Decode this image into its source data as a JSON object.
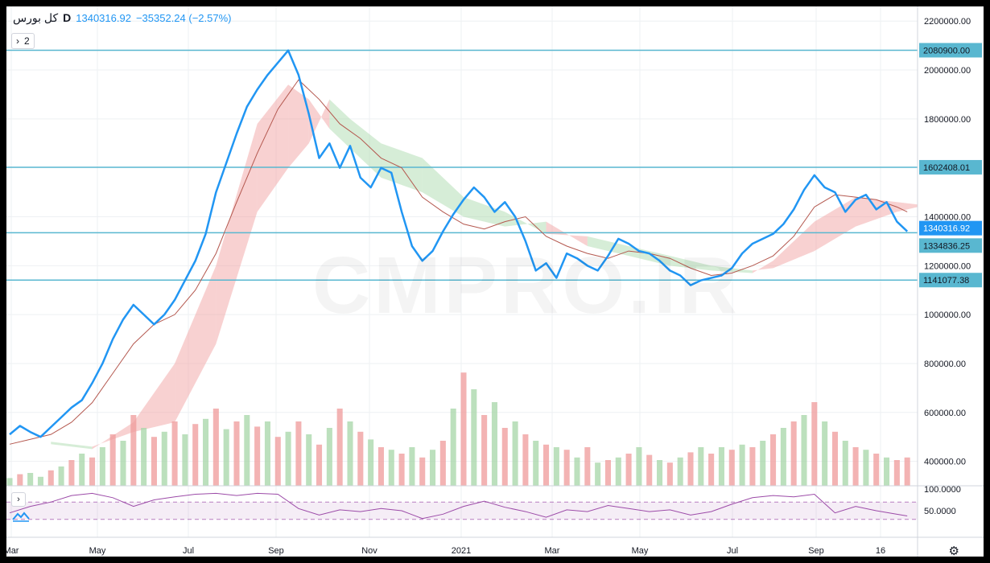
{
  "legend": {
    "symbol": "کل بورس",
    "interval": "D",
    "price": "1340316.92",
    "change": "−35352.24 (−2.57%)"
  },
  "toolbar": {
    "indicators_count": "2"
  },
  "watermark": "CMPRO.IR",
  "price_axis": {
    "ticks": [
      "2200000.00",
      "2000000.00",
      "1800000.00",
      "1400000.00",
      "1200000.00",
      "1000000.00",
      "800000.00",
      "600000.00",
      "400000.00"
    ],
    "labels": [
      {
        "text": "2080900.00",
        "style": "line"
      },
      {
        "text": "1602408.01",
        "style": "line"
      },
      {
        "text": "1340316.92",
        "style": "current"
      },
      {
        "text": "1334836.25",
        "style": "line"
      },
      {
        "text": "1141077.38",
        "style": "line"
      }
    ]
  },
  "rsi_axis": {
    "ticks": [
      "100.0000",
      "50.0000"
    ]
  },
  "time_axis": {
    "ticks": [
      "Mar",
      "May",
      "Jul",
      "Sep",
      "Nov",
      "2021",
      "Mar",
      "May",
      "Jul",
      "Sep",
      "16"
    ]
  },
  "chart_data": {
    "type": "line",
    "x_range": [
      "2020-03",
      "2021-10"
    ],
    "ylim": [
      300000,
      2260000
    ],
    "horizontal_lines": [
      2080900.0,
      1602408.01,
      1334836.25,
      1141077.38
    ],
    "current_price": 1340316.92,
    "colors": {
      "price": "#2196f3",
      "ma": "#b4584f",
      "cloud_up": "#a5d6a7",
      "cloud_down": "#ef9a9a",
      "level_line": "#59b7d0",
      "volume_up": "#a5d6a7",
      "volume_down": "#ef9a9a",
      "rsi": "#9c4ba8"
    },
    "series": [
      {
        "role": "price",
        "points": [
          [
            0,
            510000
          ],
          [
            1,
            545000
          ],
          [
            2,
            520000
          ],
          [
            3,
            500000
          ],
          [
            4,
            540000
          ],
          [
            5,
            580000
          ],
          [
            6,
            620000
          ],
          [
            7,
            650000
          ],
          [
            8,
            720000
          ],
          [
            9,
            800000
          ],
          [
            10,
            900000
          ],
          [
            11,
            980000
          ],
          [
            12,
            1040000
          ],
          [
            13,
            1000000
          ],
          [
            14,
            960000
          ],
          [
            15,
            1000000
          ],
          [
            16,
            1060000
          ],
          [
            17,
            1140000
          ],
          [
            18,
            1220000
          ],
          [
            19,
            1330000
          ],
          [
            20,
            1500000
          ],
          [
            21,
            1620000
          ],
          [
            22,
            1740000
          ],
          [
            23,
            1850000
          ],
          [
            24,
            1920000
          ],
          [
            25,
            1980000
          ],
          [
            26,
            2030000
          ],
          [
            27,
            2080000
          ],
          [
            28,
            1980000
          ],
          [
            29,
            1820000
          ],
          [
            30,
            1640000
          ],
          [
            31,
            1700000
          ],
          [
            32,
            1600000
          ],
          [
            33,
            1690000
          ],
          [
            34,
            1560000
          ],
          [
            35,
            1520000
          ],
          [
            36,
            1600000
          ],
          [
            37,
            1580000
          ],
          [
            38,
            1420000
          ],
          [
            39,
            1280000
          ],
          [
            40,
            1220000
          ],
          [
            41,
            1260000
          ],
          [
            42,
            1340000
          ],
          [
            43,
            1410000
          ],
          [
            44,
            1470000
          ],
          [
            45,
            1520000
          ],
          [
            46,
            1480000
          ],
          [
            47,
            1420000
          ],
          [
            48,
            1460000
          ],
          [
            49,
            1400000
          ],
          [
            50,
            1300000
          ],
          [
            51,
            1180000
          ],
          [
            52,
            1210000
          ],
          [
            53,
            1150000
          ],
          [
            54,
            1250000
          ],
          [
            55,
            1230000
          ],
          [
            56,
            1200000
          ],
          [
            57,
            1180000
          ],
          [
            58,
            1240000
          ],
          [
            59,
            1310000
          ],
          [
            60,
            1290000
          ],
          [
            61,
            1260000
          ],
          [
            62,
            1250000
          ],
          [
            63,
            1220000
          ],
          [
            64,
            1180000
          ],
          [
            65,
            1160000
          ],
          [
            66,
            1120000
          ],
          [
            67,
            1140000
          ],
          [
            68,
            1150000
          ],
          [
            69,
            1160000
          ],
          [
            70,
            1190000
          ],
          [
            71,
            1250000
          ],
          [
            72,
            1290000
          ],
          [
            73,
            1310000
          ],
          [
            74,
            1330000
          ],
          [
            75,
            1370000
          ],
          [
            76,
            1430000
          ],
          [
            77,
            1510000
          ],
          [
            78,
            1570000
          ],
          [
            79,
            1520000
          ],
          [
            80,
            1500000
          ],
          [
            81,
            1420000
          ],
          [
            82,
            1470000
          ],
          [
            83,
            1490000
          ],
          [
            84,
            1430000
          ],
          [
            85,
            1460000
          ],
          [
            86,
            1380000
          ],
          [
            87,
            1340316.92
          ]
        ]
      },
      {
        "role": "ma",
        "points": [
          [
            0,
            470000
          ],
          [
            2,
            490000
          ],
          [
            4,
            510000
          ],
          [
            6,
            560000
          ],
          [
            8,
            640000
          ],
          [
            10,
            760000
          ],
          [
            12,
            880000
          ],
          [
            14,
            960000
          ],
          [
            16,
            1000000
          ],
          [
            18,
            1100000
          ],
          [
            20,
            1250000
          ],
          [
            22,
            1460000
          ],
          [
            24,
            1660000
          ],
          [
            26,
            1840000
          ],
          [
            28,
            1960000
          ],
          [
            30,
            1880000
          ],
          [
            32,
            1780000
          ],
          [
            34,
            1720000
          ],
          [
            36,
            1640000
          ],
          [
            38,
            1600000
          ],
          [
            40,
            1480000
          ],
          [
            42,
            1420000
          ],
          [
            44,
            1370000
          ],
          [
            46,
            1350000
          ],
          [
            48,
            1380000
          ],
          [
            50,
            1400000
          ],
          [
            52,
            1320000
          ],
          [
            54,
            1280000
          ],
          [
            56,
            1250000
          ],
          [
            58,
            1230000
          ],
          [
            60,
            1260000
          ],
          [
            62,
            1250000
          ],
          [
            64,
            1230000
          ],
          [
            66,
            1190000
          ],
          [
            68,
            1160000
          ],
          [
            70,
            1170000
          ],
          [
            72,
            1200000
          ],
          [
            74,
            1240000
          ],
          [
            76,
            1320000
          ],
          [
            78,
            1440000
          ],
          [
            80,
            1490000
          ],
          [
            82,
            1480000
          ],
          [
            84,
            1470000
          ],
          [
            86,
            1440000
          ],
          [
            87,
            1420000
          ]
        ]
      }
    ],
    "cloud": [
      [
        4,
        480000,
        470000
      ],
      [
        8,
        460000,
        450000
      ],
      [
        12,
        520000,
        560000
      ],
      [
        16,
        560000,
        800000
      ],
      [
        20,
        880000,
        1200000
      ],
      [
        24,
        1420000,
        1780000
      ],
      [
        27,
        1600000,
        1940000
      ],
      [
        29,
        1700000,
        1880000
      ],
      [
        31,
        1880000,
        1760000
      ],
      [
        33,
        1800000,
        1680000
      ],
      [
        36,
        1700000,
        1560000
      ],
      [
        40,
        1640000,
        1500000
      ],
      [
        44,
        1480000,
        1400000
      ],
      [
        48,
        1420000,
        1360000
      ],
      [
        52,
        1330000,
        1380000
      ],
      [
        56,
        1320000,
        1280000
      ],
      [
        60,
        1280000,
        1240000
      ],
      [
        64,
        1240000,
        1200000
      ],
      [
        68,
        1200000,
        1180000
      ],
      [
        72,
        1180000,
        1170000
      ],
      [
        74,
        1190000,
        1220000
      ],
      [
        78,
        1260000,
        1380000
      ],
      [
        82,
        1360000,
        1480000
      ],
      [
        86,
        1420000,
        1460000
      ],
      [
        88,
        1440000,
        1450000
      ]
    ],
    "volume": [
      [
        0,
        0.06,
        1
      ],
      [
        1,
        0.09,
        0
      ],
      [
        2,
        0.1,
        1
      ],
      [
        3,
        0.07,
        1
      ],
      [
        4,
        0.12,
        0
      ],
      [
        5,
        0.15,
        1
      ],
      [
        6,
        0.2,
        0
      ],
      [
        7,
        0.25,
        1
      ],
      [
        8,
        0.22,
        0
      ],
      [
        9,
        0.3,
        1
      ],
      [
        10,
        0.4,
        0
      ],
      [
        11,
        0.35,
        1
      ],
      [
        12,
        0.55,
        0
      ],
      [
        13,
        0.45,
        1
      ],
      [
        14,
        0.38,
        0
      ],
      [
        15,
        0.42,
        1
      ],
      [
        16,
        0.5,
        0
      ],
      [
        17,
        0.4,
        1
      ],
      [
        18,
        0.48,
        0
      ],
      [
        19,
        0.52,
        1
      ],
      [
        20,
        0.6,
        0
      ],
      [
        21,
        0.44,
        1
      ],
      [
        22,
        0.5,
        0
      ],
      [
        23,
        0.55,
        1
      ],
      [
        24,
        0.46,
        0
      ],
      [
        25,
        0.5,
        1
      ],
      [
        26,
        0.38,
        0
      ],
      [
        27,
        0.42,
        1
      ],
      [
        28,
        0.5,
        0
      ],
      [
        29,
        0.4,
        1
      ],
      [
        30,
        0.32,
        0
      ],
      [
        31,
        0.45,
        1
      ],
      [
        32,
        0.6,
        0
      ],
      [
        33,
        0.5,
        1
      ],
      [
        34,
        0.42,
        0
      ],
      [
        35,
        0.36,
        1
      ],
      [
        36,
        0.3,
        0
      ],
      [
        37,
        0.28,
        1
      ],
      [
        38,
        0.25,
        0
      ],
      [
        39,
        0.3,
        1
      ],
      [
        40,
        0.22,
        0
      ],
      [
        41,
        0.28,
        1
      ],
      [
        42,
        0.35,
        0
      ],
      [
        43,
        0.6,
        1
      ],
      [
        44,
        0.88,
        0
      ],
      [
        45,
        0.75,
        1
      ],
      [
        46,
        0.55,
        0
      ],
      [
        47,
        0.65,
        1
      ],
      [
        48,
        0.45,
        0
      ],
      [
        49,
        0.5,
        1
      ],
      [
        50,
        0.4,
        0
      ],
      [
        51,
        0.35,
        1
      ],
      [
        52,
        0.32,
        0
      ],
      [
        53,
        0.3,
        1
      ],
      [
        54,
        0.28,
        0
      ],
      [
        55,
        0.22,
        1
      ],
      [
        56,
        0.3,
        0
      ],
      [
        57,
        0.18,
        1
      ],
      [
        58,
        0.2,
        0
      ],
      [
        59,
        0.22,
        1
      ],
      [
        60,
        0.25,
        0
      ],
      [
        61,
        0.3,
        1
      ],
      [
        62,
        0.24,
        0
      ],
      [
        63,
        0.2,
        1
      ],
      [
        64,
        0.18,
        0
      ],
      [
        65,
        0.22,
        1
      ],
      [
        66,
        0.26,
        0
      ],
      [
        67,
        0.3,
        1
      ],
      [
        68,
        0.25,
        0
      ],
      [
        69,
        0.3,
        1
      ],
      [
        70,
        0.28,
        0
      ],
      [
        71,
        0.32,
        1
      ],
      [
        72,
        0.3,
        0
      ],
      [
        73,
        0.35,
        1
      ],
      [
        74,
        0.4,
        0
      ],
      [
        75,
        0.45,
        1
      ],
      [
        76,
        0.5,
        0
      ],
      [
        77,
        0.55,
        1
      ],
      [
        78,
        0.65,
        0
      ],
      [
        79,
        0.5,
        1
      ],
      [
        80,
        0.42,
        0
      ],
      [
        81,
        0.35,
        1
      ],
      [
        82,
        0.3,
        0
      ],
      [
        83,
        0.28,
        1
      ],
      [
        84,
        0.25,
        0
      ],
      [
        85,
        0.22,
        1
      ],
      [
        86,
        0.2,
        0
      ],
      [
        87,
        0.22,
        0
      ]
    ],
    "rsi": {
      "ylim": [
        0,
        100
      ],
      "bands": [
        30,
        70
      ],
      "points": [
        [
          0,
          45
        ],
        [
          2,
          60
        ],
        [
          4,
          70
        ],
        [
          6,
          85
        ],
        [
          8,
          90
        ],
        [
          10,
          80
        ],
        [
          12,
          60
        ],
        [
          14,
          75
        ],
        [
          16,
          82
        ],
        [
          18,
          88
        ],
        [
          20,
          90
        ],
        [
          22,
          85
        ],
        [
          24,
          90
        ],
        [
          26,
          88
        ],
        [
          28,
          55
        ],
        [
          30,
          40
        ],
        [
          32,
          52
        ],
        [
          34,
          48
        ],
        [
          36,
          55
        ],
        [
          38,
          50
        ],
        [
          40,
          32
        ],
        [
          42,
          42
        ],
        [
          44,
          60
        ],
        [
          46,
          72
        ],
        [
          48,
          58
        ],
        [
          50,
          48
        ],
        [
          52,
          35
        ],
        [
          54,
          52
        ],
        [
          56,
          48
        ],
        [
          58,
          62
        ],
        [
          60,
          55
        ],
        [
          62,
          48
        ],
        [
          64,
          52
        ],
        [
          66,
          40
        ],
        [
          68,
          48
        ],
        [
          70,
          65
        ],
        [
          72,
          80
        ],
        [
          74,
          85
        ],
        [
          76,
          82
        ],
        [
          78,
          88
        ],
        [
          80,
          45
        ],
        [
          82,
          60
        ],
        [
          84,
          50
        ],
        [
          86,
          42
        ],
        [
          87,
          38
        ]
      ]
    }
  }
}
